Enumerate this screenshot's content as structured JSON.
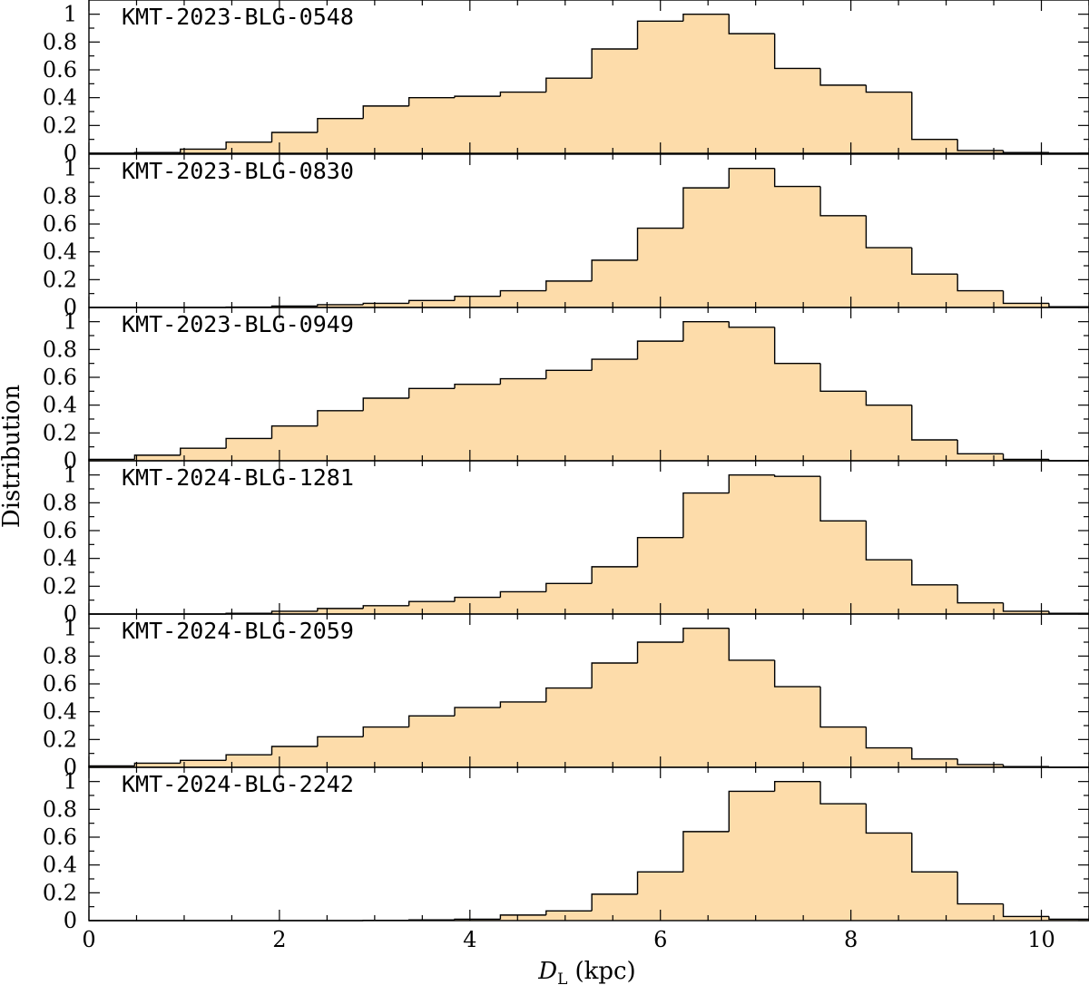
{
  "figure": {
    "ylabel": "Distribution",
    "xlabel_main": "D",
    "xlabel_sub": "L",
    "xlabel_unit": "(kpc)"
  },
  "colors": {
    "fill": "#fddcaa",
    "stroke": "#000000"
  },
  "chart_data": [
    {
      "type": "histogram",
      "title": "KMT-2023-BLG-0548",
      "xlim": [
        0,
        10.5
      ],
      "ylim": [
        0,
        1.05
      ],
      "xticks": [
        0,
        2,
        4,
        6,
        8,
        10
      ],
      "yticks": [
        0,
        0.2,
        0.4,
        0.6,
        0.8,
        1
      ],
      "bin_edges": [
        0,
        0.48,
        0.96,
        1.44,
        1.92,
        2.4,
        2.88,
        3.36,
        3.84,
        4.32,
        4.8,
        5.28,
        5.76,
        6.24,
        6.72,
        7.2,
        7.68,
        8.16,
        8.64,
        9.12,
        9.6,
        10.08,
        10.5
      ],
      "values": [
        0,
        0.005,
        0.03,
        0.08,
        0.15,
        0.25,
        0.34,
        0.4,
        0.41,
        0.44,
        0.54,
        0.75,
        0.95,
        1.0,
        0.86,
        0.61,
        0.49,
        0.44,
        0.1,
        0.02,
        0.005,
        0
      ]
    },
    {
      "type": "histogram",
      "title": "KMT-2023-BLG-0830",
      "xlim": [
        0,
        10.5
      ],
      "ylim": [
        0,
        1.05
      ],
      "xticks": [
        0,
        2,
        4,
        6,
        8,
        10
      ],
      "yticks": [
        0,
        0.2,
        0.4,
        0.6,
        0.8,
        1
      ],
      "bin_edges": [
        0,
        0.48,
        0.96,
        1.44,
        1.92,
        2.4,
        2.88,
        3.36,
        3.84,
        4.32,
        4.8,
        5.28,
        5.76,
        6.24,
        6.72,
        7.2,
        7.68,
        8.16,
        8.64,
        9.12,
        9.6,
        10.08,
        10.5
      ],
      "values": [
        0,
        0,
        0,
        0.003,
        0.01,
        0.02,
        0.03,
        0.05,
        0.08,
        0.12,
        0.19,
        0.34,
        0.57,
        0.86,
        1.0,
        0.87,
        0.66,
        0.43,
        0.24,
        0.12,
        0.03,
        0.005
      ]
    },
    {
      "type": "histogram",
      "title": "KMT-2023-BLG-0949",
      "xlim": [
        0,
        10.5
      ],
      "ylim": [
        0,
        1.05
      ],
      "xticks": [
        0,
        2,
        4,
        6,
        8,
        10
      ],
      "yticks": [
        0,
        0.2,
        0.4,
        0.6,
        0.8,
        1
      ],
      "bin_edges": [
        0,
        0.48,
        0.96,
        1.44,
        1.92,
        2.4,
        2.88,
        3.36,
        3.84,
        4.32,
        4.8,
        5.28,
        5.76,
        6.24,
        6.72,
        7.2,
        7.68,
        8.16,
        8.64,
        9.12,
        9.6,
        10.08,
        10.5
      ],
      "values": [
        0.01,
        0.04,
        0.09,
        0.16,
        0.25,
        0.36,
        0.45,
        0.52,
        0.55,
        0.59,
        0.65,
        0.73,
        0.86,
        1.0,
        0.96,
        0.7,
        0.5,
        0.4,
        0.15,
        0.05,
        0.01,
        0
      ]
    },
    {
      "type": "histogram",
      "title": "KMT-2024-BLG-1281",
      "xlim": [
        0,
        10.5
      ],
      "ylim": [
        0,
        1.05
      ],
      "xticks": [
        0,
        2,
        4,
        6,
        8,
        10
      ],
      "yticks": [
        0,
        0.2,
        0.4,
        0.6,
        0.8,
        1
      ],
      "bin_edges": [
        0,
        0.48,
        0.96,
        1.44,
        1.92,
        2.4,
        2.88,
        3.36,
        3.84,
        4.32,
        4.8,
        5.28,
        5.76,
        6.24,
        6.72,
        7.2,
        7.68,
        8.16,
        8.64,
        9.12,
        9.6,
        10.08,
        10.5
      ],
      "values": [
        0,
        0,
        0,
        0.005,
        0.02,
        0.04,
        0.06,
        0.09,
        0.12,
        0.16,
        0.22,
        0.34,
        0.55,
        0.87,
        1.0,
        0.99,
        0.67,
        0.39,
        0.21,
        0.08,
        0.02,
        0.005
      ]
    },
    {
      "type": "histogram",
      "title": "KMT-2024-BLG-2059",
      "xlim": [
        0,
        10.5
      ],
      "ylim": [
        0,
        1.05
      ],
      "xticks": [
        0,
        2,
        4,
        6,
        8,
        10
      ],
      "yticks": [
        0,
        0.2,
        0.4,
        0.6,
        0.8,
        1
      ],
      "bin_edges": [
        0,
        0.48,
        0.96,
        1.44,
        1.92,
        2.4,
        2.88,
        3.36,
        3.84,
        4.32,
        4.8,
        5.28,
        5.76,
        6.24,
        6.72,
        7.2,
        7.68,
        8.16,
        8.64,
        9.12,
        9.6,
        10.08,
        10.5
      ],
      "values": [
        0.01,
        0.03,
        0.05,
        0.09,
        0.15,
        0.22,
        0.29,
        0.37,
        0.43,
        0.47,
        0.57,
        0.75,
        0.9,
        1.0,
        0.77,
        0.58,
        0.29,
        0.14,
        0.06,
        0.02,
        0.005,
        0
      ]
    },
    {
      "type": "histogram",
      "title": "KMT-2024-BLG-2242",
      "xlim": [
        0,
        10.5
      ],
      "ylim": [
        0,
        1.05
      ],
      "xticks": [
        0,
        2,
        4,
        6,
        8,
        10
      ],
      "yticks": [
        0,
        0.2,
        0.4,
        0.6,
        0.8,
        1
      ],
      "bin_edges": [
        0,
        0.48,
        0.96,
        1.44,
        1.92,
        2.4,
        2.88,
        3.36,
        3.84,
        4.32,
        4.8,
        5.28,
        5.76,
        6.24,
        6.72,
        7.2,
        7.68,
        8.16,
        8.64,
        9.12,
        9.6,
        10.08,
        10.5
      ],
      "values": [
        0,
        0,
        0,
        0,
        0,
        0,
        0.002,
        0.005,
        0.01,
        0.04,
        0.07,
        0.19,
        0.35,
        0.64,
        0.93,
        1.0,
        0.84,
        0.63,
        0.35,
        0.12,
        0.03,
        0.01
      ]
    }
  ]
}
